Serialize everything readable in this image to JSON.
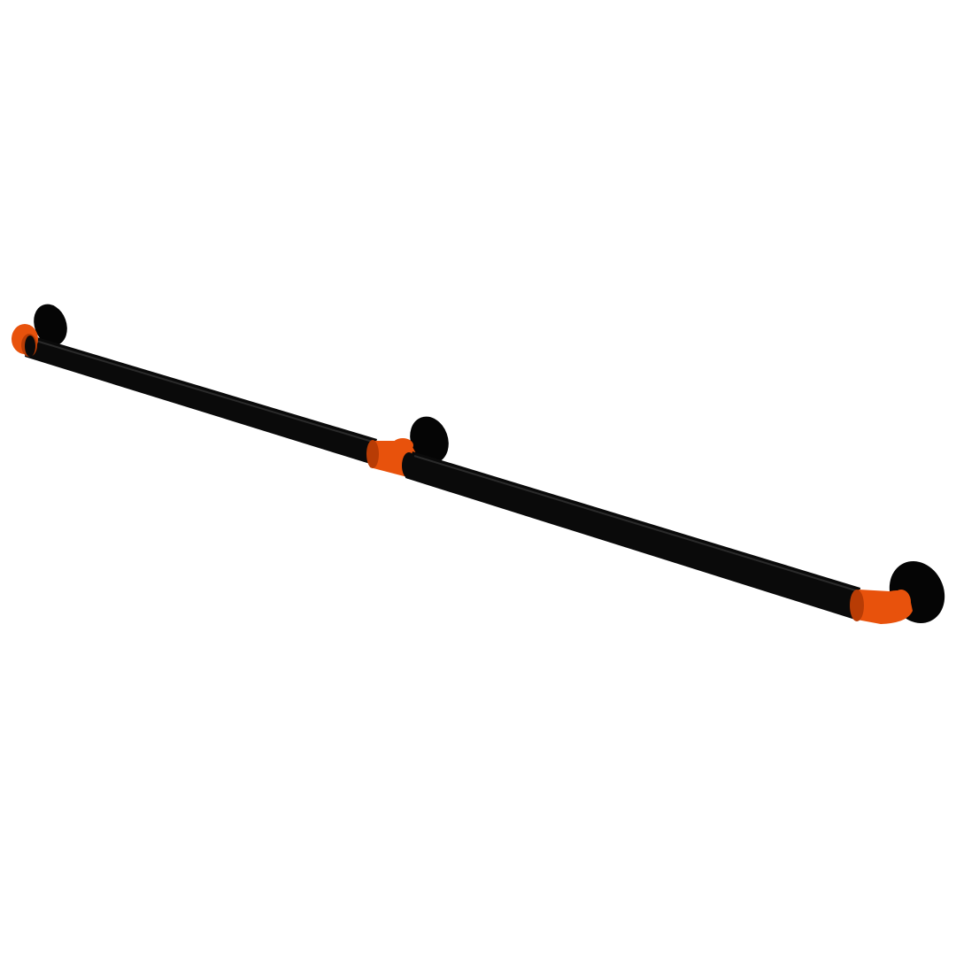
{
  "image": {
    "subject": "pipe-handrail",
    "colors": {
      "background": "#ffffff",
      "pipe": "#0a0a0a",
      "pipe_highlight": "#2a2a2a",
      "fitting": "#e8520c",
      "fitting_shade": "#b83c05",
      "flange": "#050505"
    }
  }
}
